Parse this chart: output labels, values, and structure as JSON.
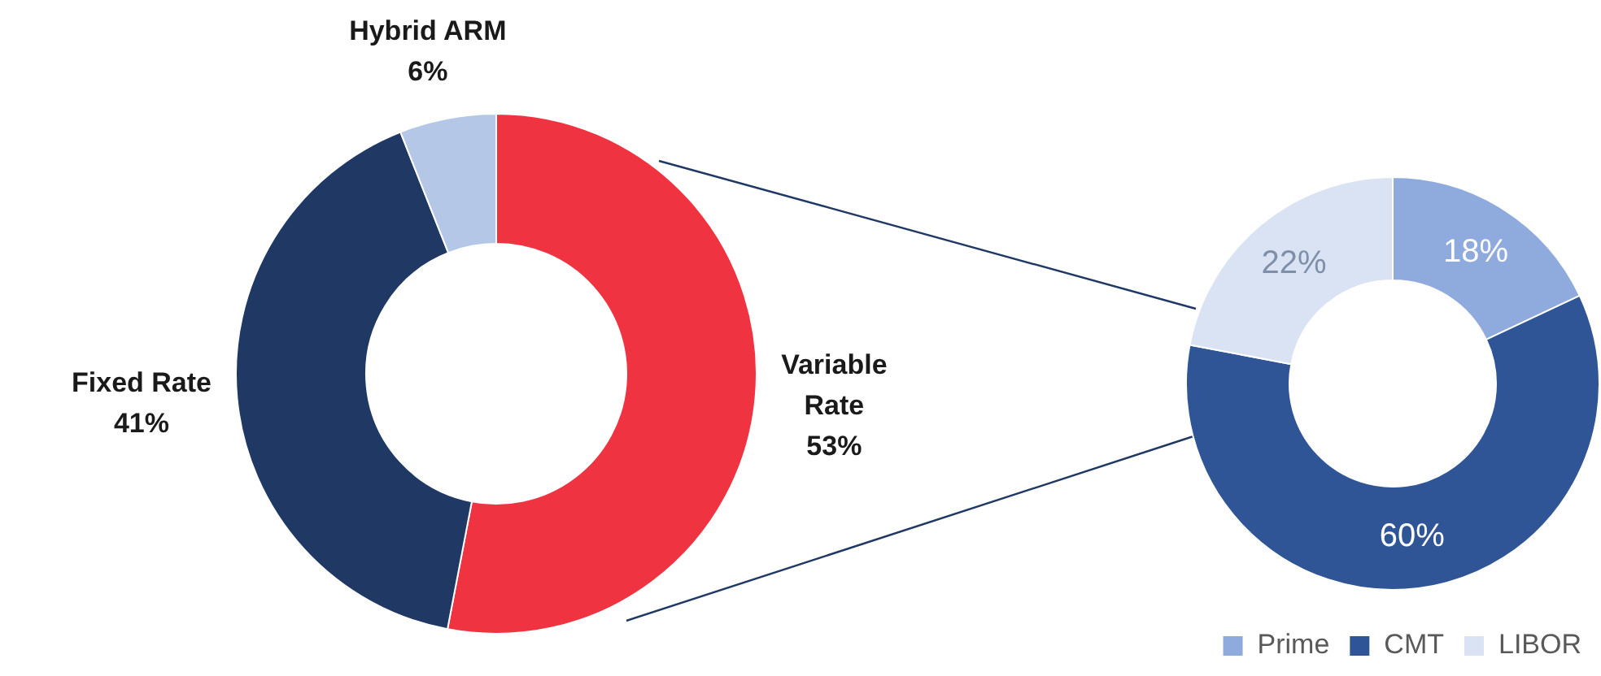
{
  "chart_data": [
    {
      "type": "donut",
      "categories": [
        "Variable Rate",
        "Fixed Rate",
        "Hybrid ARM"
      ],
      "values": [
        53,
        41,
        6
      ],
      "colors": [
        "#ef3340",
        "#1f3864",
        "#b4c7e7"
      ],
      "value_labels": [
        "53%",
        "41%",
        "6%"
      ],
      "legend": false
    },
    {
      "type": "donut",
      "categories": [
        "Prime",
        "CMT",
        "LIBOR"
      ],
      "values": [
        18,
        60,
        22
      ],
      "colors": [
        "#8faadc",
        "#2f5597",
        "#dae3f3"
      ],
      "value_labels": [
        "18%",
        "60%",
        "22%"
      ],
      "legend": "bottom right"
    }
  ]
}
